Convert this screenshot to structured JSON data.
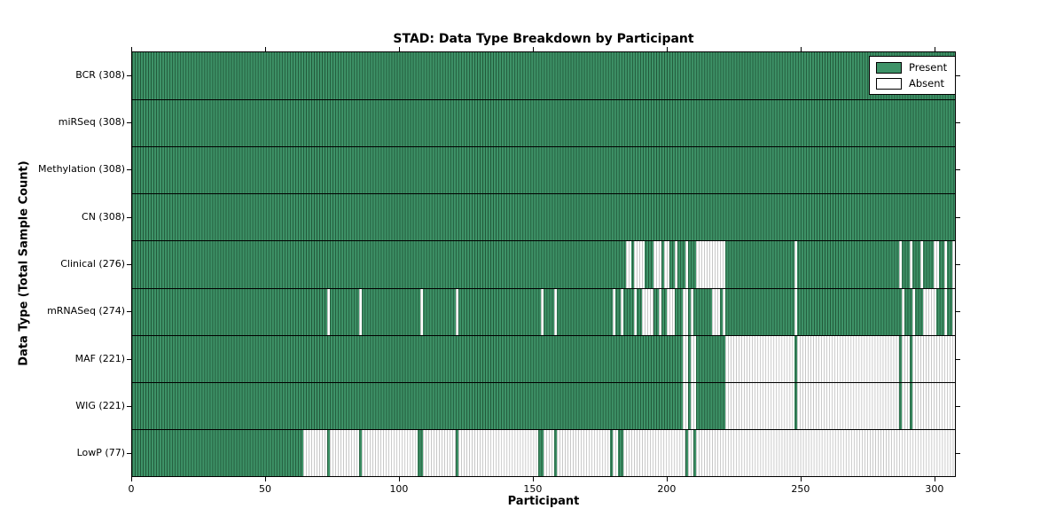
{
  "title": "STAD: Data Type Breakdown by Participant",
  "axes": {
    "xlabel": "Participant",
    "ylabel": "Data Type (Total Sample Count)",
    "x_ticks": [
      0,
      50,
      100,
      150,
      200,
      250,
      300
    ],
    "x_max": 308
  },
  "legend": {
    "items": [
      {
        "label": "Present",
        "color": "#3e9368"
      },
      {
        "label": "Absent",
        "color": "#ffffff"
      }
    ]
  },
  "colors": {
    "present_face": "#3e9368",
    "present_edge": "#1f5436",
    "absent_face": "#ffffff",
    "absent_edge": "#c2c2c2",
    "axis": "#000000",
    "background": "#ffffff"
  },
  "chart_data": {
    "type": "heatmap",
    "x_axis": "participant_index",
    "n_participants": 308,
    "encoding": "absent_ranges are inclusive 0-based participant index ranges rendered white; all other participants are green (Present)",
    "rows": [
      {
        "label": "BCR (308)",
        "name": "BCR",
        "present_count": 308,
        "absent_ranges": []
      },
      {
        "label": "miRSeq (308)",
        "name": "miRSeq",
        "present_count": 308,
        "absent_ranges": []
      },
      {
        "label": "Methylation (308)",
        "name": "Methylation",
        "present_count": 308,
        "absent_ranges": []
      },
      {
        "label": "CN (308)",
        "name": "CN",
        "present_count": 308,
        "absent_ranges": []
      },
      {
        "label": "Clinical (276)",
        "name": "Clinical",
        "present_count": 276,
        "absent_ranges": [
          [
            185,
            186
          ],
          [
            188,
            191
          ],
          [
            195,
            197
          ],
          [
            199,
            200
          ],
          [
            203,
            203
          ],
          [
            207,
            207
          ],
          [
            211,
            221
          ],
          [
            248,
            248
          ],
          [
            287,
            287
          ],
          [
            291,
            291
          ],
          [
            295,
            295
          ],
          [
            300,
            301
          ],
          [
            304,
            304
          ],
          [
            307,
            307
          ]
        ]
      },
      {
        "label": "mRNASeq (274)",
        "name": "mRNASeq",
        "present_count": 274,
        "absent_ranges": [
          [
            73,
            73
          ],
          [
            85,
            85
          ],
          [
            108,
            108
          ],
          [
            121,
            121
          ],
          [
            153,
            153
          ],
          [
            158,
            158
          ],
          [
            180,
            180
          ],
          [
            183,
            183
          ],
          [
            188,
            188
          ],
          [
            191,
            194
          ],
          [
            197,
            197
          ],
          [
            200,
            202
          ],
          [
            206,
            207
          ],
          [
            209,
            209
          ],
          [
            217,
            219
          ],
          [
            221,
            221
          ],
          [
            248,
            248
          ],
          [
            288,
            288
          ],
          [
            292,
            292
          ],
          [
            296,
            300
          ],
          [
            304,
            304
          ],
          [
            307,
            307
          ]
        ]
      },
      {
        "label": "MAF (221)",
        "name": "MAF",
        "present_count": 221,
        "absent_ranges": [
          [
            206,
            207
          ],
          [
            209,
            210
          ],
          [
            222,
            247
          ],
          [
            249,
            286
          ],
          [
            288,
            290
          ],
          [
            292,
            307
          ]
        ]
      },
      {
        "label": "WIG (221)",
        "name": "WIG",
        "present_count": 221,
        "absent_ranges": [
          [
            206,
            207
          ],
          [
            209,
            210
          ],
          [
            222,
            247
          ],
          [
            249,
            286
          ],
          [
            288,
            290
          ],
          [
            292,
            307
          ]
        ]
      },
      {
        "label": "LowP (77)",
        "name": "LowP",
        "present_count": 77,
        "absent_ranges": [
          [
            64,
            72
          ],
          [
            74,
            84
          ],
          [
            86,
            106
          ],
          [
            109,
            120
          ],
          [
            122,
            151
          ],
          [
            154,
            157
          ],
          [
            159,
            178
          ],
          [
            180,
            181
          ],
          [
            184,
            206
          ],
          [
            208,
            209
          ],
          [
            211,
            307
          ]
        ]
      }
    ]
  }
}
